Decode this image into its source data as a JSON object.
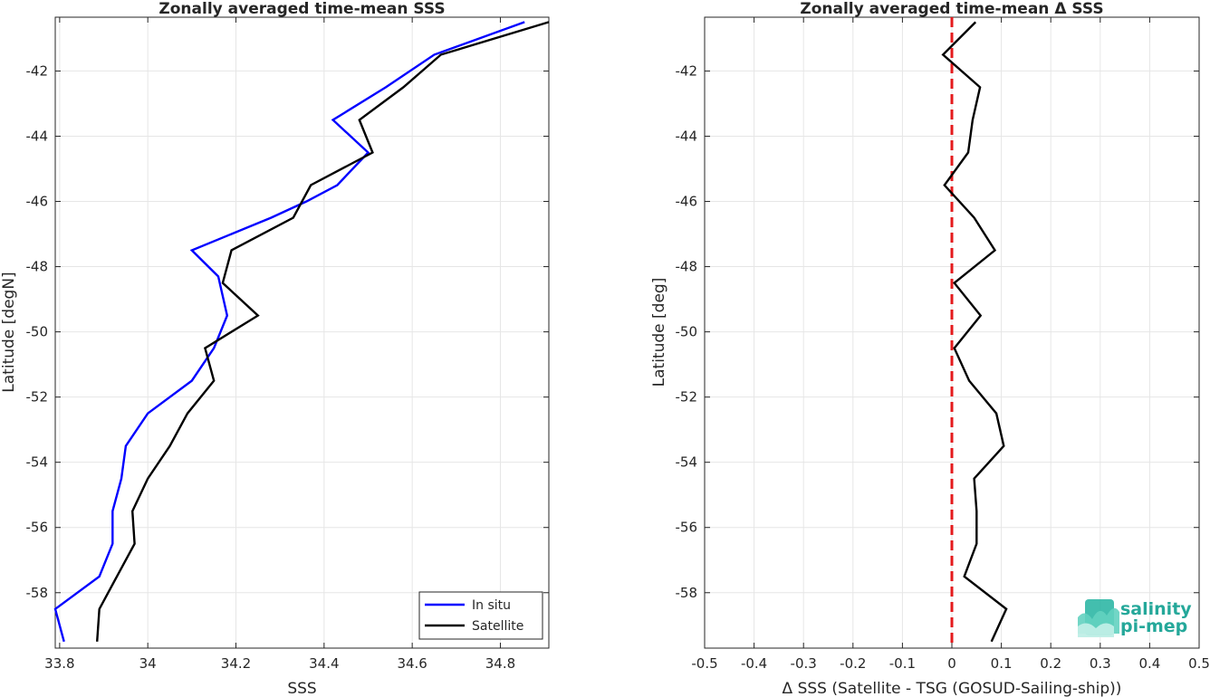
{
  "chart_data": [
    {
      "type": "line",
      "title": "Zonally averaged time-mean SSS",
      "xlabel": "SSS",
      "ylabel": "Latitude [degN]",
      "xlim": [
        33.79,
        34.91
      ],
      "ylim": [
        -59.7,
        -40.35
      ],
      "xticks": [
        33.8,
        34,
        34.2,
        34.4,
        34.6,
        34.8
      ],
      "xtick_labels": [
        "33.8",
        "34",
        "34.2",
        "34.4",
        "34.6",
        "34.8"
      ],
      "yticks": [
        -42,
        -44,
        -46,
        -48,
        -50,
        -52,
        -54,
        -56,
        -58
      ],
      "ytick_labels": [
        "-42",
        "-44",
        "-46",
        "-48",
        "-50",
        "-52",
        "-54",
        "-56",
        "-58"
      ],
      "grid": true,
      "legend": "bottom-right",
      "series": [
        {
          "name": "In situ",
          "color": "#0000ff",
          "x": [
            34.855,
            34.65,
            34.54,
            34.42,
            34.5,
            34.43,
            34.36,
            34.28,
            34.1,
            34.16,
            34.18,
            34.15,
            34.1,
            34.0,
            33.95,
            33.94,
            33.92,
            33.92,
            33.89,
            33.79,
            33.81
          ],
          "y": [
            -40.5,
            -41.5,
            -42.5,
            -43.5,
            -44.5,
            -45.5,
            -46.0,
            -46.5,
            -47.5,
            -48.3,
            -49.5,
            -50.5,
            -51.5,
            -52.5,
            -53.5,
            -54.5,
            -55.5,
            -56.5,
            -57.5,
            -58.5,
            -59.5
          ]
        },
        {
          "name": "Satellite",
          "color": "#000000",
          "x": [
            34.91,
            34.665,
            34.58,
            34.48,
            34.51,
            34.37,
            34.33,
            34.19,
            34.17,
            34.25,
            34.13,
            34.15,
            34.09,
            34.05,
            34.0,
            33.965,
            33.97,
            33.93,
            33.89,
            33.885
          ],
          "y": [
            -40.5,
            -41.5,
            -42.5,
            -43.5,
            -44.5,
            -45.5,
            -46.5,
            -47.5,
            -48.5,
            -49.5,
            -50.5,
            -51.5,
            -52.5,
            -53.5,
            -54.5,
            -55.5,
            -56.5,
            -57.5,
            -58.5,
            -59.5
          ]
        }
      ]
    },
    {
      "type": "line",
      "title": "Zonally averaged time-mean Δ SSS",
      "xlabel": "Δ SSS (Satellite - TSG (GOSUD-Sailing-ship))",
      "ylabel": "Latitude [deg]",
      "xlim": [
        -0.5,
        0.5
      ],
      "ylim": [
        -59.7,
        -40.35
      ],
      "xticks": [
        -0.5,
        -0.4,
        -0.3,
        -0.2,
        -0.1,
        0,
        0.1,
        0.2,
        0.3,
        0.4,
        0.5
      ],
      "xtick_labels": [
        "-0.5",
        "-0.4",
        "-0.3",
        "-0.2",
        "-0.1",
        "0",
        "0.1",
        "0.2",
        "0.3",
        "0.4",
        "0.5"
      ],
      "yticks": [
        -42,
        -44,
        -46,
        -48,
        -50,
        -52,
        -54,
        -56,
        -58
      ],
      "ytick_labels": [
        "-42",
        "-44",
        "-46",
        "-48",
        "-50",
        "-52",
        "-54",
        "-56",
        "-58"
      ],
      "grid": true,
      "reference_line": {
        "x": 0,
        "color": "#e41a1c",
        "style": "dashed"
      },
      "series": [
        {
          "color": "#000000",
          "x": [
            0.048,
            -0.018,
            0.057,
            0.042,
            0.033,
            -0.015,
            0.045,
            0.087,
            0.005,
            0.058,
            0.005,
            0.035,
            0.09,
            0.105,
            0.045,
            0.05,
            0.05,
            0.025,
            0.11,
            0.08
          ],
          "y": [
            -40.5,
            -41.5,
            -42.5,
            -43.5,
            -44.5,
            -45.5,
            -46.5,
            -47.5,
            -48.5,
            -49.5,
            -50.5,
            -51.5,
            -52.5,
            -53.5,
            -54.5,
            -55.5,
            -56.5,
            -57.5,
            -58.5,
            -59.5
          ]
        }
      ]
    }
  ],
  "logo": {
    "line1": "salinity",
    "line2": "pi-mep"
  }
}
